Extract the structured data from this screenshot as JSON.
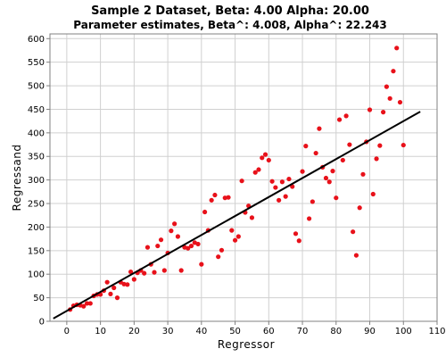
{
  "chart_data": {
    "type": "scatter",
    "title": "Sample 2 Dataset, Beta: 4.00 Alpha: 20.00",
    "subtitle": "Parameter estimates, Beta^: 4.008, Alpha^: 22.243",
    "xlabel": "Regressor",
    "ylabel": "Regressand",
    "xlim": [
      -5,
      110
    ],
    "ylim": [
      0,
      610
    ],
    "xticks": [
      0,
      10,
      20,
      30,
      40,
      50,
      60,
      70,
      80,
      90,
      100,
      110
    ],
    "yticks": [
      0,
      50,
      100,
      150,
      200,
      250,
      300,
      350,
      400,
      450,
      500,
      550,
      600
    ],
    "grid": true,
    "point_color": "#e8111a",
    "line_color": "#000000",
    "fit_line": {
      "x": [
        -4,
        105
      ],
      "y": [
        6,
        445
      ]
    },
    "series": [
      {
        "x": [
          1,
          2,
          3,
          4,
          5,
          6,
          7,
          8,
          9,
          10,
          11,
          12,
          13,
          14,
          15,
          16,
          17,
          18,
          19,
          20,
          21,
          22,
          23,
          24,
          25,
          26,
          27,
          28,
          29,
          30,
          31,
          32,
          33,
          34,
          35,
          36,
          37,
          38,
          39,
          40,
          41,
          42,
          43,
          44,
          45,
          46,
          47,
          48,
          49,
          50,
          51,
          52,
          53,
          54,
          55,
          56,
          57,
          58,
          59,
          60,
          61,
          62,
          63,
          64,
          65,
          66,
          67,
          68,
          69,
          70,
          71,
          72,
          73,
          74,
          75,
          76,
          77,
          78,
          79,
          80,
          81,
          82,
          83,
          84,
          85,
          86,
          87,
          88,
          89,
          90,
          91,
          92,
          93,
          94,
          95,
          96,
          97,
          98,
          99,
          100
        ],
        "y": [
          25,
          33,
          35,
          34,
          32,
          38,
          38,
          54,
          57,
          57,
          65,
          83,
          58,
          71,
          50,
          83,
          79,
          78,
          105,
          89,
          103,
          108,
          102,
          157,
          121,
          104,
          160,
          173,
          108,
          145,
          192,
          207,
          180,
          108,
          157,
          155,
          160,
          167,
          164,
          121,
          232,
          193,
          257,
          268,
          137,
          151,
          262,
          263,
          193,
          172,
          180,
          298,
          231,
          245,
          220,
          316,
          322,
          347,
          354,
          342,
          297,
          284,
          257,
          296,
          265,
          302,
          286,
          186,
          171,
          318,
          372,
          218,
          254,
          357,
          409,
          327,
          304,
          296,
          319,
          262,
          428,
          342,
          436,
          375,
          190,
          140,
          241,
          312,
          381,
          449,
          270,
          345,
          373,
          444,
          498,
          473,
          531,
          580,
          465,
          374
        ]
      }
    ]
  }
}
